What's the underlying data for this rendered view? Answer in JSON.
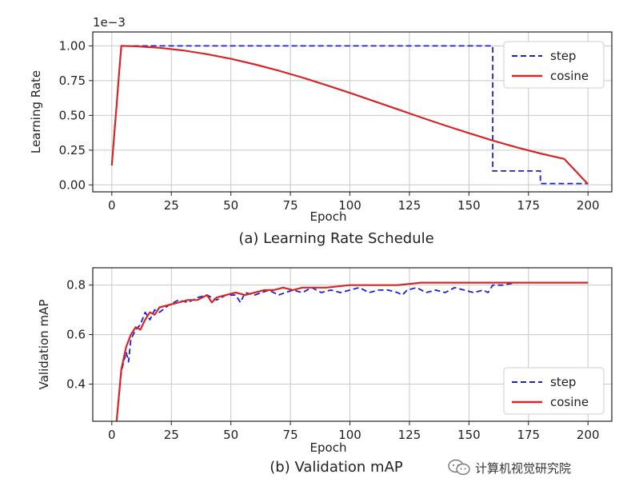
{
  "chart_data": [
    {
      "type": "line",
      "caption": "(a) Learning Rate Schedule",
      "xlabel": "Epoch",
      "ylabel": "Learning Rate",
      "offset_text": "1e−3",
      "xlim": [
        -8,
        210
      ],
      "ylim": [
        -0.05,
        1.1
      ],
      "xticks": [
        0,
        25,
        50,
        75,
        100,
        125,
        150,
        175,
        200
      ],
      "yticks": [
        0.0,
        0.25,
        0.5,
        0.75,
        1.0
      ],
      "ytick_labels": [
        "0.00",
        "0.25",
        "0.50",
        "0.75",
        "1.00"
      ],
      "grid": true,
      "legend_position": "top-right",
      "series": [
        {
          "name": "step",
          "color": "#1f1fd6",
          "style": "dashed",
          "x": [
            0,
            4,
            160,
            160,
            180,
            180,
            200
          ],
          "y": [
            0.14,
            1.0,
            1.0,
            0.1,
            0.1,
            0.01,
            0.01
          ]
        },
        {
          "name": "cosine",
          "color": "#d62728",
          "style": "solid",
          "x": [
            0,
            1,
            2,
            3,
            4,
            10,
            20,
            30,
            40,
            50,
            60,
            70,
            80,
            90,
            100,
            110,
            120,
            130,
            140,
            150,
            160,
            170,
            180,
            190,
            200
          ],
          "y": [
            0.14,
            0.36,
            0.57,
            0.79,
            1.0,
            0.997,
            0.986,
            0.967,
            0.94,
            0.907,
            0.867,
            0.822,
            0.772,
            0.718,
            0.662,
            0.603,
            0.544,
            0.485,
            0.427,
            0.372,
            0.319,
            0.27,
            0.226,
            0.187,
            0.005
          ]
        }
      ]
    },
    {
      "type": "line",
      "caption": "(b) Validation mAP",
      "xlabel": "Epoch",
      "ylabel": "Validation mAP",
      "xlim": [
        -8,
        210
      ],
      "ylim": [
        0.25,
        0.87
      ],
      "xticks": [
        0,
        25,
        50,
        75,
        100,
        125,
        150,
        175,
        200
      ],
      "yticks": [
        0.4,
        0.6,
        0.8
      ],
      "ytick_labels": [
        "0.4",
        "0.6",
        "0.8"
      ],
      "grid": true,
      "legend_position": "bottom-right",
      "series": [
        {
          "name": "step",
          "color": "#1f1fd6",
          "style": "dashed",
          "x": [
            2,
            4,
            6,
            7,
            8,
            10,
            12,
            14,
            16,
            18,
            20,
            24,
            28,
            32,
            36,
            40,
            44,
            48,
            52,
            54,
            56,
            60,
            66,
            70,
            76,
            80,
            84,
            88,
            92,
            96,
            100,
            104,
            108,
            112,
            116,
            120,
            122,
            124,
            128,
            132,
            136,
            140,
            144,
            148,
            152,
            156,
            158,
            160,
            164,
            170,
            180,
            190,
            200
          ],
          "y": [
            0.25,
            0.45,
            0.53,
            0.49,
            0.58,
            0.62,
            0.64,
            0.69,
            0.66,
            0.7,
            0.69,
            0.72,
            0.74,
            0.73,
            0.75,
            0.76,
            0.74,
            0.76,
            0.76,
            0.73,
            0.77,
            0.76,
            0.78,
            0.76,
            0.78,
            0.77,
            0.79,
            0.77,
            0.78,
            0.77,
            0.78,
            0.79,
            0.77,
            0.78,
            0.78,
            0.77,
            0.76,
            0.78,
            0.79,
            0.77,
            0.78,
            0.77,
            0.79,
            0.78,
            0.77,
            0.78,
            0.77,
            0.8,
            0.8,
            0.81,
            0.81,
            0.81,
            0.81
          ]
        },
        {
          "name": "cosine",
          "color": "#d62728",
          "style": "solid",
          "x": [
            2,
            4,
            6,
            8,
            10,
            12,
            14,
            16,
            18,
            20,
            24,
            28,
            32,
            36,
            40,
            42,
            44,
            48,
            52,
            56,
            60,
            64,
            68,
            72,
            76,
            80,
            90,
            100,
            110,
            120,
            130,
            140,
            150,
            160,
            170,
            180,
            190,
            200
          ],
          "y": [
            0.25,
            0.46,
            0.55,
            0.6,
            0.63,
            0.62,
            0.66,
            0.69,
            0.68,
            0.71,
            0.72,
            0.73,
            0.74,
            0.74,
            0.76,
            0.73,
            0.75,
            0.76,
            0.77,
            0.76,
            0.77,
            0.78,
            0.78,
            0.79,
            0.78,
            0.79,
            0.79,
            0.8,
            0.8,
            0.8,
            0.81,
            0.81,
            0.81,
            0.81,
            0.81,
            0.81,
            0.81,
            0.81
          ]
        }
      ]
    }
  ],
  "watermark": "计算机视觉研究院"
}
